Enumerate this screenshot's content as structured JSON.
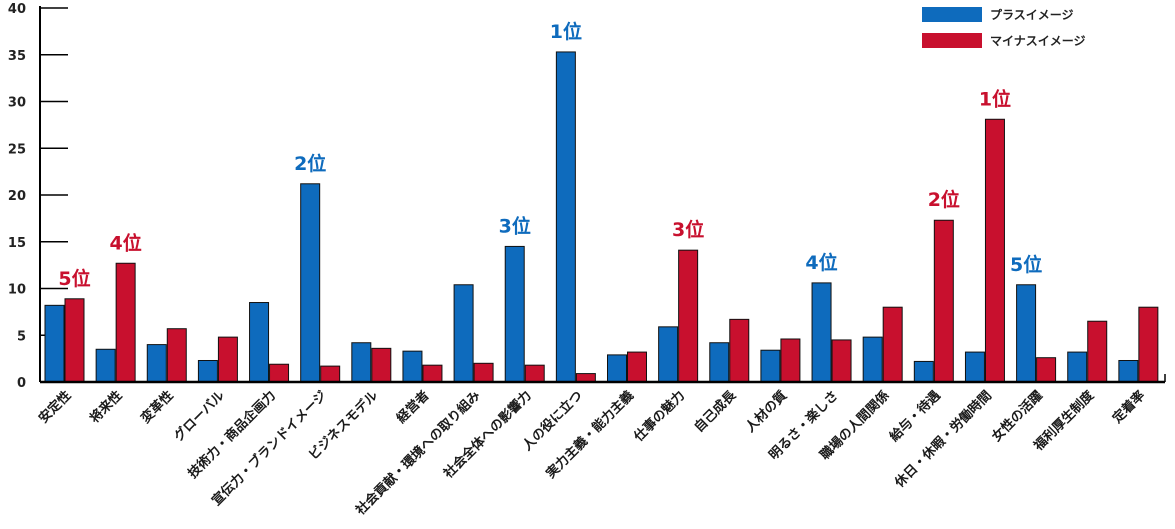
{
  "colors": {
    "plus": "#0e6bbd",
    "minus": "#c8102e",
    "axis": "#000000"
  },
  "chart_data": {
    "type": "bar",
    "ylim": [
      0,
      40
    ],
    "yticks": [
      "0",
      "5",
      "10",
      "15",
      "20",
      "25",
      "30",
      "35",
      "40"
    ],
    "grid": false,
    "legend_position": "top-right",
    "categories": [
      "安定性",
      "将来性",
      "変革性",
      "グローバル",
      "技術力・商品企画力",
      "宣伝力・ブランドイメージ",
      "ビジネスモデル",
      "経営者",
      "社会貢献・環境への取り組み",
      "社会全体への影響力",
      "人の役に立つ",
      "実力主義・能力主義",
      "仕事の魅力",
      "自己成長",
      "人材の質",
      "明るさ・楽しさ",
      "職場の人間関係",
      "給与・待遇",
      "休日・休暇・労働時間",
      "女性の活躍",
      "福利厚生制度",
      "定着率"
    ],
    "series": [
      {
        "name": "プラスイメージ",
        "color": "#0e6bbd",
        "values": [
          8.2,
          3.5,
          4.0,
          2.3,
          8.5,
          21.2,
          4.2,
          3.3,
          10.4,
          14.5,
          35.3,
          2.9,
          5.9,
          4.2,
          3.4,
          10.6,
          4.8,
          2.2,
          3.2,
          10.4,
          3.2,
          2.3
        ]
      },
      {
        "name": "マイナスイメージ",
        "color": "#c8102e",
        "values": [
          8.9,
          12.7,
          5.7,
          4.8,
          1.9,
          1.7,
          3.6,
          1.8,
          2.0,
          1.8,
          0.9,
          3.2,
          14.1,
          6.7,
          4.6,
          4.5,
          8.0,
          17.3,
          28.1,
          2.6,
          6.5,
          8.0
        ]
      }
    ],
    "annotations": [
      {
        "text": "5位",
        "series": 1,
        "index": 0,
        "color": "#c8102e"
      },
      {
        "text": "4位",
        "series": 1,
        "index": 1,
        "color": "#c8102e"
      },
      {
        "text": "2位",
        "series": 0,
        "index": 5,
        "color": "#0e6bbd"
      },
      {
        "text": "3位",
        "series": 0,
        "index": 9,
        "color": "#0e6bbd"
      },
      {
        "text": "1位",
        "series": 0,
        "index": 10,
        "color": "#0e6bbd"
      },
      {
        "text": "3位",
        "series": 1,
        "index": 12,
        "color": "#c8102e"
      },
      {
        "text": "4位",
        "series": 0,
        "index": 15,
        "color": "#0e6bbd"
      },
      {
        "text": "2位",
        "series": 1,
        "index": 17,
        "color": "#c8102e"
      },
      {
        "text": "1位",
        "series": 1,
        "index": 18,
        "color": "#c8102e"
      },
      {
        "text": "5位",
        "series": 0,
        "index": 19,
        "color": "#0e6bbd"
      }
    ]
  }
}
